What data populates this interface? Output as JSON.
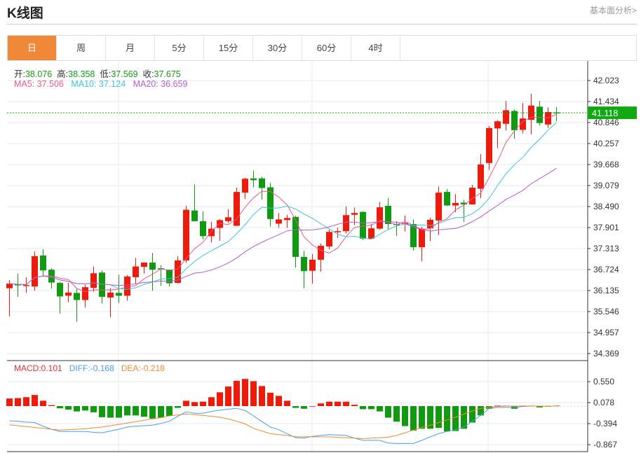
{
  "header": {
    "title": "K线图",
    "more_link": "基本面分析>"
  },
  "tabs": [
    {
      "label": "日",
      "active": true
    },
    {
      "label": "周"
    },
    {
      "label": "月"
    },
    {
      "label": "5分"
    },
    {
      "label": "15分"
    },
    {
      "label": "30分"
    },
    {
      "label": "60分"
    },
    {
      "label": "4时"
    }
  ],
  "ohlc_info": {
    "open_label": "开:",
    "open": "38.076",
    "high_label": "高:",
    "high": "38.358",
    "low_label": "低:",
    "low": "37.569",
    "close_label": "收:",
    "close": "37.675"
  },
  "ma_info": {
    "ma5": "MA5: 37.506",
    "ma10": "MA10: 37.124",
    "ma20": "MA20: 36.659"
  },
  "macd_info": {
    "macd": "MACD:0.101",
    "diff": "DIFF:-0.168",
    "dea": "DEA:-0.218"
  },
  "colors": {
    "up": "#f01a0a",
    "down": "#0f9a0f",
    "ma5": "#e8588e",
    "ma10": "#3cc6d6",
    "ma20": "#b05ec8",
    "diff": "#4a9ee8",
    "dea": "#f08a30",
    "last_price": "#12a812",
    "active_tab": "#f0883a"
  },
  "chart_data": [
    {
      "type": "candlestick",
      "price_axis": {
        "ticks": [
          "42.023",
          "41.434",
          "40.846",
          "40.257",
          "39.668",
          "39.079",
          "38.490",
          "37.901",
          "37.313",
          "36.724",
          "36.135",
          "35.546",
          "34.957",
          "34.369"
        ],
        "range": [
          34.369,
          42.023
        ]
      },
      "last_price": "41.118",
      "ohlc": [
        [
          36.2,
          36.43,
          35.41,
          36.33
        ],
        [
          36.31,
          36.61,
          35.96,
          36.29
        ],
        [
          36.27,
          36.51,
          36.07,
          36.29
        ],
        [
          36.25,
          37.23,
          36.13,
          37.1
        ],
        [
          37.12,
          37.29,
          36.53,
          36.7
        ],
        [
          36.72,
          36.76,
          36.19,
          36.36
        ],
        [
          36.35,
          36.38,
          35.49,
          35.97
        ],
        [
          35.99,
          36.35,
          35.81,
          36.08
        ],
        [
          36.07,
          36.18,
          35.26,
          35.87
        ],
        [
          35.87,
          36.3,
          35.66,
          36.23
        ],
        [
          36.21,
          36.81,
          36.1,
          36.62
        ],
        [
          36.64,
          36.7,
          35.77,
          35.96
        ],
        [
          35.94,
          36.2,
          35.39,
          36.08
        ],
        [
          36.07,
          36.58,
          35.79,
          35.99
        ],
        [
          35.99,
          36.57,
          35.85,
          36.53
        ],
        [
          36.51,
          37.05,
          36.33,
          36.81
        ],
        [
          36.8,
          36.93,
          36.61,
          36.92
        ],
        [
          36.92,
          37.19,
          36.13,
          36.72
        ],
        [
          36.76,
          36.85,
          36.27,
          36.74
        ],
        [
          36.72,
          36.72,
          36.25,
          36.34
        ],
        [
          36.35,
          37.1,
          36.33,
          36.98
        ],
        [
          36.98,
          38.51,
          36.91,
          38.4
        ],
        [
          38.38,
          39.11,
          38.08,
          38.08
        ],
        [
          38.08,
          38.36,
          37.57,
          37.66
        ],
        [
          37.66,
          38.06,
          37.49,
          37.87
        ],
        [
          37.89,
          38.14,
          37.53,
          38.11
        ],
        [
          38.08,
          38.42,
          38.03,
          38.19
        ],
        [
          37.95,
          39.02,
          37.95,
          38.9
        ],
        [
          38.88,
          39.3,
          38.7,
          39.27
        ],
        [
          39.28,
          39.5,
          39.03,
          39.23
        ],
        [
          39.28,
          39.33,
          38.69,
          39.01
        ],
        [
          39.03,
          39.16,
          37.93,
          38.14
        ],
        [
          38.01,
          38.31,
          37.89,
          38.13
        ],
        [
          38.11,
          38.26,
          37.89,
          38.17
        ],
        [
          38.2,
          38.23,
          36.78,
          37.08
        ],
        [
          37.08,
          37.25,
          36.2,
          36.68
        ],
        [
          36.69,
          37.16,
          36.33,
          37.0
        ],
        [
          37.0,
          37.45,
          36.66,
          37.39
        ],
        [
          37.37,
          37.84,
          37.29,
          37.78
        ],
        [
          37.77,
          37.9,
          37.61,
          37.8
        ],
        [
          37.8,
          38.49,
          37.74,
          38.25
        ],
        [
          38.26,
          38.46,
          37.97,
          38.31
        ],
        [
          38.34,
          38.36,
          37.55,
          37.59
        ],
        [
          37.59,
          38.0,
          37.57,
          37.88
        ],
        [
          37.87,
          38.62,
          37.84,
          38.47
        ],
        [
          38.51,
          38.72,
          37.84,
          38.0
        ],
        [
          38.0,
          38.08,
          37.67,
          37.97
        ],
        [
          38.0,
          38.24,
          37.79,
          38.03
        ],
        [
          38.0,
          38.13,
          37.26,
          37.35
        ],
        [
          37.35,
          37.92,
          36.95,
          37.87
        ],
        [
          37.88,
          38.18,
          37.52,
          38.12
        ],
        [
          38.1,
          39.05,
          37.69,
          38.88
        ],
        [
          38.9,
          38.98,
          38.51,
          38.52
        ],
        [
          38.52,
          38.84,
          38.33,
          38.59
        ],
        [
          38.6,
          38.68,
          38.06,
          38.55
        ],
        [
          38.55,
          39.1,
          38.55,
          39.02
        ],
        [
          38.99,
          39.96,
          38.72,
          39.67
        ],
        [
          39.71,
          40.75,
          39.52,
          40.69
        ],
        [
          40.68,
          40.91,
          40.13,
          40.88
        ],
        [
          40.81,
          41.45,
          40.62,
          41.19
        ],
        [
          41.17,
          41.21,
          40.39,
          40.63
        ],
        [
          40.64,
          41.39,
          40.54,
          40.96
        ],
        [
          40.92,
          41.65,
          40.52,
          41.32
        ],
        [
          41.29,
          41.45,
          40.76,
          40.83
        ],
        [
          40.79,
          41.27,
          40.69,
          41.14
        ],
        [
          41.13,
          41.28,
          40.88,
          41.118
        ]
      ],
      "series": [
        {
          "name": "MA5",
          "period": 5
        },
        {
          "name": "MA10",
          "period": 10
        },
        {
          "name": "MA20",
          "period": 20
        }
      ],
      "grid": true
    },
    {
      "type": "macd",
      "axis": {
        "ticks": [
          "0.550",
          "0.078",
          "-0.394",
          "-0.867"
        ],
        "range": [
          -0.91,
          0.6
        ]
      },
      "histogram": [
        0.17,
        0.18,
        0.2,
        0.25,
        0.12,
        0.02,
        -0.05,
        -0.08,
        -0.12,
        -0.1,
        -0.14,
        -0.25,
        -0.26,
        -0.26,
        -0.21,
        -0.21,
        -0.24,
        -0.28,
        -0.26,
        -0.22,
        -0.04,
        0.12,
        0.09,
        0.1,
        0.2,
        0.31,
        0.44,
        0.57,
        0.61,
        0.56,
        0.45,
        0.3,
        0.23,
        0.12,
        -0.04,
        -0.06,
        0,
        0.06,
        0.1,
        0.1,
        0.1,
        0.03,
        -0.07,
        -0.07,
        -0.12,
        -0.26,
        -0.35,
        -0.45,
        -0.55,
        -0.51,
        -0.51,
        -0.49,
        -0.57,
        -0.56,
        -0.51,
        -0.37,
        -0.21,
        -0.06,
        0.01,
        0.01,
        -0.06,
        0.01,
        0.01,
        -0.03,
        -0.01,
        0.01
      ],
      "diff": [
        -0.33,
        -0.34,
        -0.36,
        -0.37,
        -0.45,
        -0.52,
        -0.57,
        -0.57,
        -0.57,
        -0.57,
        -0.59,
        -0.6,
        -0.56,
        -0.52,
        -0.47,
        -0.45,
        -0.44,
        -0.43,
        -0.39,
        -0.34,
        -0.23,
        -0.13,
        -0.16,
        -0.16,
        -0.12,
        -0.09,
        -0.07,
        -0.05,
        -0.1,
        -0.22,
        -0.35,
        -0.47,
        -0.53,
        -0.62,
        -0.71,
        -0.72,
        -0.68,
        -0.66,
        -0.64,
        -0.65,
        -0.66,
        -0.72,
        -0.77,
        -0.77,
        -0.77,
        -0.83,
        -0.84,
        -0.84,
        -0.84,
        -0.77,
        -0.69,
        -0.62,
        -0.57,
        -0.53,
        -0.47,
        -0.34,
        -0.21,
        -0.05,
        -0.03,
        -0.03,
        -0.03,
        -0.01,
        0,
        0,
        0,
        0
      ],
      "dea": [
        -0.42,
        -0.44,
        -0.46,
        -0.48,
        -0.5,
        -0.52,
        -0.54,
        -0.53,
        -0.52,
        -0.51,
        -0.49,
        -0.47,
        -0.44,
        -0.41,
        -0.38,
        -0.35,
        -0.32,
        -0.29,
        -0.26,
        -0.22,
        -0.2,
        -0.18,
        -0.19,
        -0.21,
        -0.23,
        -0.25,
        -0.29,
        -0.34,
        -0.4,
        -0.5,
        -0.56,
        -0.62,
        -0.64,
        -0.66,
        -0.69,
        -0.69,
        -0.69,
        -0.69,
        -0.69,
        -0.7,
        -0.71,
        -0.72,
        -0.73,
        -0.72,
        -0.71,
        -0.7,
        -0.66,
        -0.6,
        -0.54,
        -0.48,
        -0.43,
        -0.37,
        -0.31,
        -0.25,
        -0.18,
        -0.11,
        -0.05,
        -0.02,
        -0.01,
        0,
        0,
        0,
        0,
        0,
        0,
        0
      ]
    }
  ]
}
